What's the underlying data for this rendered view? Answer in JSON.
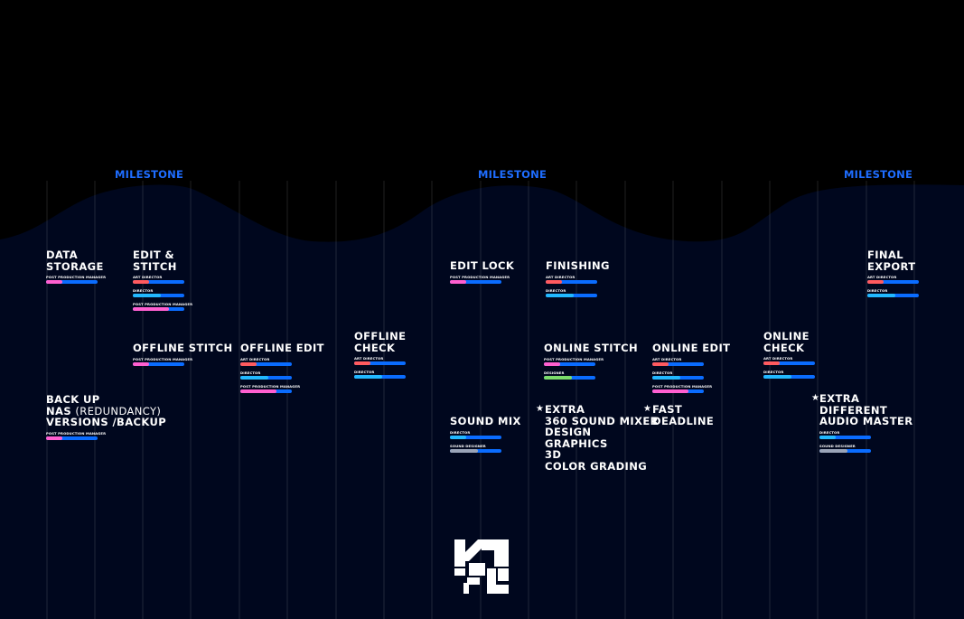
{
  "milestones": [
    "MILESTONE",
    "MILESTONE",
    "MILESTONE"
  ],
  "colors": {
    "background": "#000000",
    "wave_top": "#0d63ff",
    "milestone": "#1e6dff",
    "track": "#0a6cff",
    "pink": "#ff5fd0",
    "red": "#ff5a5f",
    "cyan": "#22b8ff",
    "green": "#7bdc6b",
    "gray": "#9aa4b8"
  },
  "stages": [
    {
      "title": "DATA\nSTORAGE",
      "roles": [
        {
          "label": "POST PRODUCTION MANAGER",
          "fill": 0.32,
          "color": "pink"
        }
      ]
    },
    {
      "title": "EDIT &\nSTITCH",
      "roles": [
        {
          "label": "ART DIRECTOR",
          "fill": 0.32,
          "color": "red"
        },
        {
          "label": "DIRECTOR",
          "fill": 0.55,
          "color": "cyan"
        },
        {
          "label": "POST PRODUCTION MANAGER",
          "fill": 0.7,
          "color": "pink"
        }
      ]
    },
    {
      "title": "OFFLINE STITCH",
      "roles": [
        {
          "label": "POST PRODUCTION MANAGER",
          "fill": 0.32,
          "color": "pink"
        }
      ]
    },
    {
      "title": "OFFLINE EDIT",
      "roles": [
        {
          "label": "ART DIRECTOR",
          "fill": 0.32,
          "color": "red"
        },
        {
          "label": "DIRECTOR",
          "fill": 0.55,
          "color": "cyan"
        },
        {
          "label": "POST PRODUCTION MANAGER",
          "fill": 0.7,
          "color": "pink"
        }
      ]
    },
    {
      "title": "OFFLINE\nCHECK",
      "roles": [
        {
          "label": "ART DIRECTOR",
          "fill": 0.32,
          "color": "red"
        },
        {
          "label": "DIRECTOR",
          "fill": 0.55,
          "color": "cyan"
        }
      ]
    },
    {
      "title": "BACK UP",
      "title2": [
        "NAS ",
        "(REDUNDANCY)"
      ],
      "title3": "VERSIONS /BACKUP",
      "roles": [
        {
          "label": "POST PRODUCTION MANAGER",
          "fill": 0.32,
          "color": "pink"
        }
      ]
    },
    {
      "title": "EDIT LOCK",
      "roles": [
        {
          "label": "POST PRODUCTION MANAGER",
          "fill": 0.32,
          "color": "pink"
        }
      ]
    },
    {
      "title": "FINISHING",
      "roles": [
        {
          "label": "ART DIRECTOR",
          "fill": 0.32,
          "color": "red"
        },
        {
          "label": "DIRECTOR",
          "fill": 0.55,
          "color": "cyan"
        }
      ]
    },
    {
      "title": "ONLINE STITCH",
      "roles": [
        {
          "label": "POST PRODUCTION MANAGER",
          "fill": 0.32,
          "color": "pink"
        },
        {
          "label": "DESIGNER",
          "fill": 0.55,
          "color": "green"
        }
      ]
    },
    {
      "title": "ONLINE EDIT",
      "roles": [
        {
          "label": "ART DIRECTOR",
          "fill": 0.32,
          "color": "red"
        },
        {
          "label": "DIRECTOR",
          "fill": 0.55,
          "color": "cyan"
        },
        {
          "label": "POST PRODUCTION MANAGER",
          "fill": 0.7,
          "color": "pink"
        }
      ]
    },
    {
      "title": "ONLINE\nCHECK",
      "roles": [
        {
          "label": "ART DIRECTOR",
          "fill": 0.32,
          "color": "red"
        },
        {
          "label": "DIRECTOR",
          "fill": 0.55,
          "color": "cyan"
        }
      ]
    },
    {
      "title": "FINAL\nEXPORT",
      "roles": [
        {
          "label": "ART DIRECTOR",
          "fill": 0.32,
          "color": "red"
        },
        {
          "label": "DIRECTOR",
          "fill": 0.55,
          "color": "cyan"
        }
      ]
    },
    {
      "title": "SOUND MIX",
      "roles": [
        {
          "label": "DIRECTOR",
          "fill": 0.32,
          "color": "cyan"
        },
        {
          "label": "SOUND DESIGNER",
          "fill": 0.55,
          "color": "gray"
        }
      ]
    },
    {
      "title": "EXTRA\nDIFFERENT\nAUDIO MASTER",
      "roles": [
        {
          "label": "DIRECTOR",
          "fill": 0.32,
          "color": "cyan"
        },
        {
          "label": "SOUND DESIGNER",
          "fill": 0.55,
          "color": "gray"
        }
      ]
    }
  ],
  "extras": [
    {
      "star": "★",
      "lines": [
        "EXTRA",
        "360 SOUND MIXER",
        "DESIGN",
        "GRAPHICS",
        "3D",
        "COLOR GRADING"
      ]
    },
    {
      "star": "★",
      "lines": [
        "FAST",
        "DEADLINE"
      ]
    },
    {
      "star": "★"
    }
  ]
}
